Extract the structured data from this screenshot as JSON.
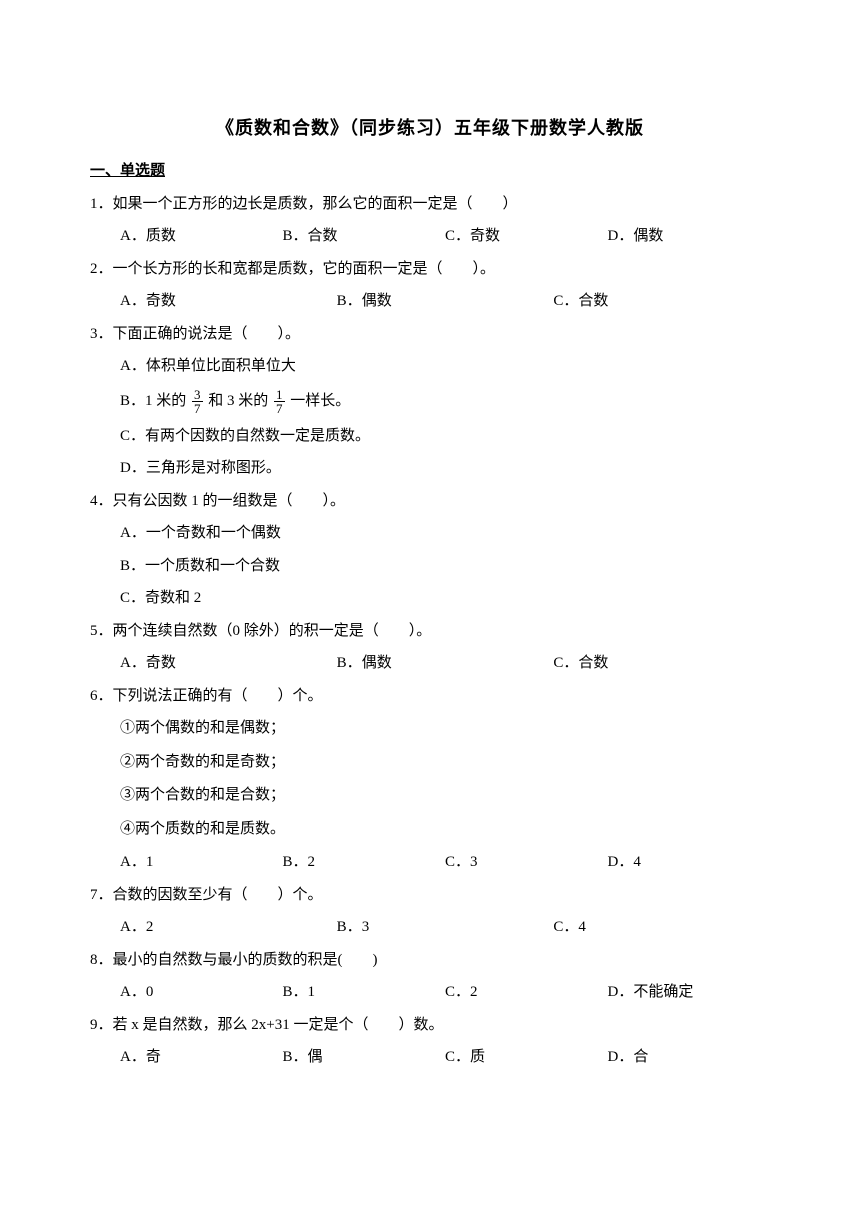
{
  "title": "《质数和合数》（同步练习）五年级下册数学人教版",
  "section_header": "一、单选题",
  "questions": [
    {
      "num": "1．",
      "stem": "如果一个正方形的边长是质数，那么它的面积一定是（　　）",
      "layout": "row4",
      "options": [
        {
          "label": "A．",
          "text": "质数"
        },
        {
          "label": "B．",
          "text": "合数"
        },
        {
          "label": "C．",
          "text": "奇数"
        },
        {
          "label": "D．",
          "text": "偶数"
        }
      ]
    },
    {
      "num": "2．",
      "stem": "一个长方形的长和宽都是质数，它的面积一定是（　　）。",
      "layout": "row3",
      "options": [
        {
          "label": "A．",
          "text": "奇数"
        },
        {
          "label": "B．",
          "text": "偶数"
        },
        {
          "label": "C．",
          "text": "合数"
        }
      ]
    },
    {
      "num": "3．",
      "stem": "下面正确的说法是（　　）。",
      "layout": "col",
      "options": [
        {
          "label": "A．",
          "text": "体积单位比面积单位大"
        },
        {
          "label": "B．",
          "text_html": "frac"
        },
        {
          "label": "C．",
          "text": "有两个因数的自然数一定是质数。"
        },
        {
          "label": "D．",
          "text": "三角形是对称图形。"
        }
      ],
      "frac_line": {
        "prefix": "1 米的 ",
        "n1": "3",
        "d1": "7",
        "mid": " 和 3 米的 ",
        "n2": "1",
        "d2": "7",
        "suffix": " 一样长。"
      }
    },
    {
      "num": "4．",
      "stem": "只有公因数 1 的一组数是（　　）。",
      "layout": "col",
      "options": [
        {
          "label": "A．",
          "text": "一个奇数和一个偶数"
        },
        {
          "label": "B．",
          "text": "一个质数和一个合数"
        },
        {
          "label": "C．",
          "text": "奇数和 2"
        }
      ]
    },
    {
      "num": "5．",
      "stem": "两个连续自然数（0 除外）的积一定是（　　）。",
      "layout": "row3",
      "options": [
        {
          "label": "A．",
          "text": "奇数"
        },
        {
          "label": "B．",
          "text": "偶数"
        },
        {
          "label": "C．",
          "text": "合数"
        }
      ]
    },
    {
      "num": "6．",
      "stem": "下列说法正确的有（　　）个。",
      "layout": "subs",
      "subs": [
        "①两个偶数的和是偶数；",
        "②两个奇数的和是奇数；",
        "③两个合数的和是合数；",
        "④两个质数的和是质数。"
      ],
      "options": [
        {
          "label": "A．",
          "text": "1"
        },
        {
          "label": "B．",
          "text": "2"
        },
        {
          "label": "C．",
          "text": "3"
        },
        {
          "label": "D．",
          "text": "4"
        }
      ]
    },
    {
      "num": "7．",
      "stem": "合数的因数至少有（　　）个。",
      "layout": "row3",
      "options": [
        {
          "label": "A．",
          "text": "2"
        },
        {
          "label": "B．",
          "text": "3"
        },
        {
          "label": "C．",
          "text": "4"
        }
      ]
    },
    {
      "num": "8．",
      "stem": "最小的自然数与最小的质数的积是(　　)",
      "layout": "row4",
      "options": [
        {
          "label": "A．",
          "text": "0"
        },
        {
          "label": "B．",
          "text": "1"
        },
        {
          "label": "C．",
          "text": "2"
        },
        {
          "label": "D．",
          "text": "不能确定"
        }
      ]
    },
    {
      "num": "9．",
      "stem": "若 x 是自然数，那么 2x+31 一定是个（　　）数。",
      "layout": "row4",
      "options": [
        {
          "label": "A．",
          "text": "奇"
        },
        {
          "label": "B．",
          "text": "偶"
        },
        {
          "label": "C．",
          "text": "质"
        },
        {
          "label": "D．",
          "text": "合"
        }
      ]
    }
  ]
}
